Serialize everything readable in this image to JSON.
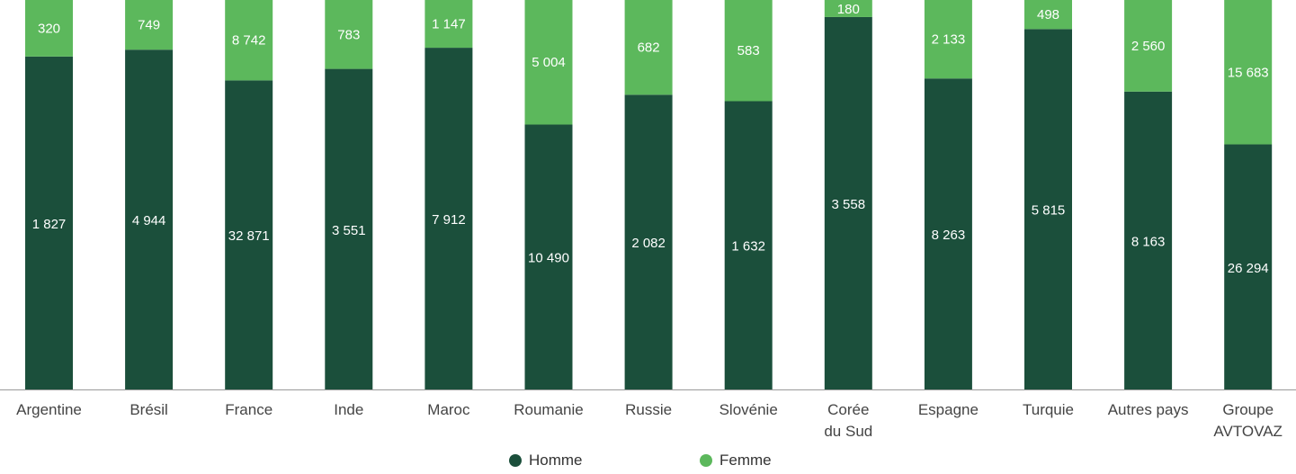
{
  "chart_data": {
    "type": "bar",
    "stacked": true,
    "categories": [
      [
        "Argentine"
      ],
      [
        "Brésil"
      ],
      [
        "France"
      ],
      [
        "Inde"
      ],
      [
        "Maroc"
      ],
      [
        "Roumanie"
      ],
      [
        "Russie"
      ],
      [
        "Slovénie"
      ],
      [
        "Corée",
        "du Sud"
      ],
      [
        "Espagne"
      ],
      [
        "Turquie"
      ],
      [
        "Autres pays"
      ],
      [
        "Groupe",
        "AVTOVAZ"
      ]
    ],
    "series": [
      {
        "name": "Homme",
        "color": "#1b4f3b",
        "values": [
          1827,
          4944,
          32871,
          3551,
          7912,
          10490,
          2082,
          1632,
          3558,
          8263,
          5815,
          8163,
          26294
        ],
        "labels": [
          "1 827",
          "4 944",
          "32 871",
          "3 551",
          "7 912",
          "10 490",
          "2 082",
          "1 632",
          "3 558",
          "8 263",
          "5 815",
          "8 163",
          "26 294"
        ]
      },
      {
        "name": "Femme",
        "color": "#5cb85c",
        "values": [
          320,
          749,
          8742,
          783,
          1147,
          5004,
          682,
          583,
          180,
          2133,
          498,
          2560,
          15683
        ],
        "labels": [
          "320",
          "749",
          "8 742",
          "783",
          "1 147",
          "5 004",
          "682",
          "583",
          "180",
          "2 133",
          "498",
          "2 560",
          "15 683"
        ]
      }
    ],
    "normalized": true,
    "legend_position": "bottom-center",
    "grid": false
  }
}
